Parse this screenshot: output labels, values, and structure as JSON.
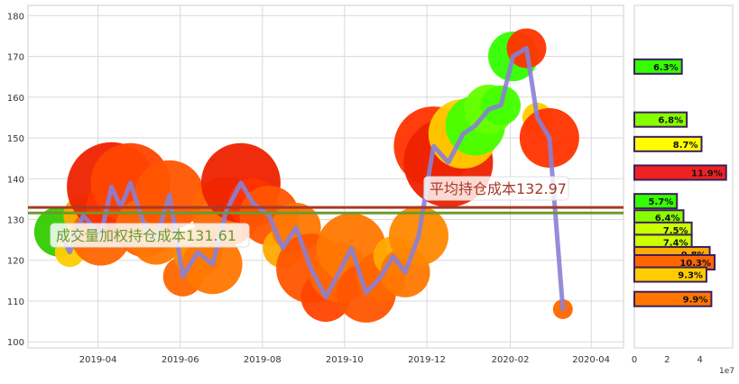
{
  "chart_data": [
    {
      "type": "scatter",
      "x_ticks": [
        "2019-04",
        "2019-06",
        "2019-08",
        "2019-10",
        "2019-12",
        "2020-02",
        "2020-04"
      ],
      "y_ticks": [
        100,
        110,
        120,
        130,
        140,
        150,
        160,
        170,
        180
      ],
      "xlim": [
        "2019-02-08",
        "2020-04-25"
      ],
      "ylim": [
        98.5,
        182.5
      ],
      "grid": true,
      "price_line_color": "#8a7fd6",
      "series": [
        {
          "x": [
            "2019-03-03",
            "2019-03-11",
            "2019-03-21",
            "2019-04-03",
            "2019-04-11",
            "2019-04-18",
            "2019-04-25",
            "2019-05-06",
            "2019-05-14",
            "2019-05-24",
            "2019-06-03",
            "2019-06-14",
            "2019-06-25",
            "2019-07-05",
            "2019-07-16",
            "2019-07-25",
            "2019-08-06",
            "2019-08-16",
            "2019-08-26",
            "2019-09-06",
            "2019-09-17",
            "2019-09-27",
            "2019-10-06",
            "2019-10-17",
            "2019-10-28",
            "2019-11-06",
            "2019-11-15",
            "2019-11-25",
            "2019-12-06",
            "2019-12-17",
            "2019-12-28",
            "2020-01-06",
            "2020-01-16",
            "2020-01-25",
            "2020-02-03",
            "2020-02-13",
            "2020-02-21",
            "2020-03-01",
            "2020-03-11"
          ],
          "y": [
            127,
            122,
            131,
            126,
            138,
            133,
            139,
            128,
            125,
            136,
            116,
            122,
            119,
            132,
            139,
            134,
            131,
            123,
            128,
            118,
            111,
            117,
            123,
            112,
            116,
            121,
            117,
            126,
            148,
            144,
            151,
            153,
            157,
            158,
            170,
            172,
            155,
            150,
            108
          ],
          "sizes": [
            5,
            3,
            4,
            6,
            9,
            7,
            8,
            6,
            5,
            7,
            4,
            5,
            6,
            7,
            8,
            5,
            6,
            4,
            5,
            7,
            5,
            6,
            7,
            6,
            5,
            4,
            5,
            6,
            8,
            9,
            7,
            6,
            5,
            4,
            5,
            4,
            3,
            6,
            2
          ],
          "colors": [
            "#33cc00",
            "#ffcc00",
            "#ffaa00",
            "#ff6600",
            "#ee2200",
            "#ff3300",
            "#ff4400",
            "#ff6600",
            "#ff7700",
            "#ff5500",
            "#ff6600",
            "#ff8800",
            "#ff7700",
            "#ff6600",
            "#ee2200",
            "#ff3300",
            "#ff5500",
            "#ffaa00",
            "#ff7700",
            "#ff5500",
            "#ff4400",
            "#ff6600",
            "#ff7700",
            "#ff5500",
            "#ff6600",
            "#ffaa00",
            "#ff7700",
            "#ff8800",
            "#ff3300",
            "#ee2200",
            "#ffcc00",
            "#44ff00",
            "#66ff00",
            "#44ff00",
            "#33ff00",
            "#ff3300",
            "#ffcc00",
            "#ff3300",
            "#ff6600"
          ]
        }
      ],
      "hlines": [
        {
          "value": 132.97,
          "color": "#a63a2a",
          "label": "平均持仓成本132.97"
        },
        {
          "value": 131.61,
          "color": "#6d9a2b",
          "label": "成交量加权持仓成本131.61"
        }
      ]
    },
    {
      "type": "bar",
      "orientation": "horizontal",
      "x_ticks": [
        "0",
        "2",
        "4"
      ],
      "x_multiplier": "1e7",
      "xlim": [
        0,
        6
      ],
      "bars": [
        {
          "price": 167.5,
          "value": 2.9,
          "label": "6.3%",
          "color": "#33ff00"
        },
        {
          "price": 154.5,
          "value": 3.2,
          "label": "6.8%",
          "color": "#88ff00"
        },
        {
          "price": 148.5,
          "value": 4.1,
          "label": "8.7%",
          "color": "#ffff00"
        },
        {
          "price": 141.5,
          "value": 5.6,
          "label": "11.9%",
          "color": "#ee2222"
        },
        {
          "price": 134.5,
          "value": 2.6,
          "label": "5.7%",
          "color": "#33ff00"
        },
        {
          "price": 130.5,
          "value": 3.0,
          "label": "6.4%",
          "color": "#88ff00"
        },
        {
          "price": 127.5,
          "value": 3.5,
          "label": "7.5%",
          "color": "#ccff00"
        },
        {
          "price": 124.5,
          "value": 3.5,
          "label": "7.4%",
          "color": "#ccff00"
        },
        {
          "price": 121.5,
          "value": 4.6,
          "label": "9.8%",
          "color": "#ffaa00"
        },
        {
          "price": 119.5,
          "value": 4.9,
          "label": "10.3%",
          "color": "#ff6600"
        },
        {
          "price": 116.5,
          "value": 4.4,
          "label": "9.3%",
          "color": "#ffcc00"
        },
        {
          "price": 110.5,
          "value": 4.7,
          "label": "9.9%",
          "color": "#ff7700"
        }
      ]
    }
  ]
}
